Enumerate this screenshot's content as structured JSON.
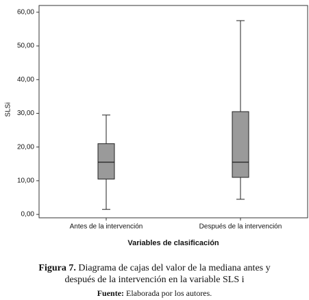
{
  "chart_data": {
    "type": "box",
    "y_label": "SLSi",
    "x_label": "Variables de clasificación",
    "categories": [
      "Antes de la intervención",
      "Después de la intervención"
    ],
    "boxes": [
      {
        "min": 1.5,
        "q1": 10.5,
        "median": 15.5,
        "q3": 21,
        "max": 29.5
      },
      {
        "min": 4.5,
        "q1": 11,
        "median": 15.5,
        "q3": 30.5,
        "max": 57.5
      }
    ],
    "color": "#9a9a9a",
    "ylim": [
      -1,
      62
    ],
    "yticks": [
      {
        "value": 0,
        "label": "0,00"
      },
      {
        "value": 10,
        "label": "10,00"
      },
      {
        "value": 20,
        "label": "20,00"
      },
      {
        "value": 30,
        "label": "30,00"
      },
      {
        "value": 40,
        "label": "40,00"
      },
      {
        "value": 50,
        "label": "50,00"
      },
      {
        "value": 60,
        "label": "60,00"
      }
    ]
  },
  "caption": {
    "figure_label": "Figura 7.",
    "line1": "Diagrama de cajas del valor de la mediana antes y",
    "line2": "después de la intervención en la variable SLS i",
    "source_label": "Fuente:",
    "source_text": "Elaborada por los autores."
  }
}
